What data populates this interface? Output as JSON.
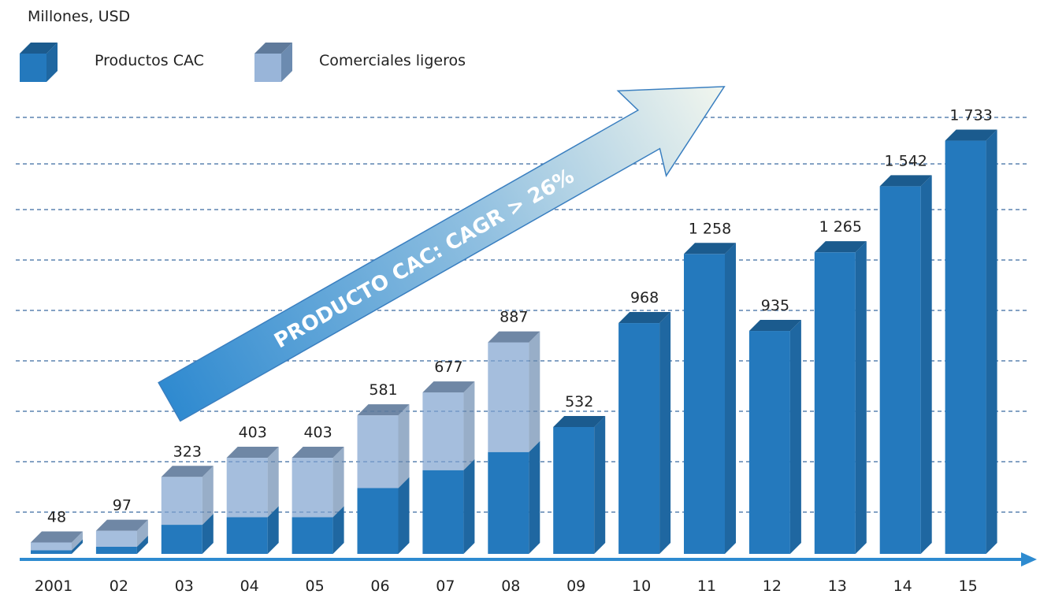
{
  "chart_data": {
    "type": "bar3d_stacked",
    "axis_label": "Millones, USD",
    "annotation": "PRODUCTO CAC: CAGR > 26%",
    "categories": [
      "2001",
      "02",
      "03",
      "04",
      "05",
      "06",
      "07",
      "08",
      "09",
      "10",
      "11",
      "12",
      "13",
      "14",
      "15"
    ],
    "series": [
      {
        "name": "Productos CAC",
        "color": "#2479bd",
        "values": [
          15,
          30,
          122,
          154,
          154,
          276,
          351,
          427,
          532,
          968,
          1258,
          935,
          1265,
          1542,
          1733
        ]
      },
      {
        "name": "Comerciales ligeros",
        "color": "#7fa3cf",
        "values": [
          33,
          67,
          201,
          249,
          249,
          305,
          326,
          460,
          null,
          null,
          null,
          null,
          null,
          null,
          null
        ]
      }
    ],
    "totals": {
      "values": [
        48,
        97,
        323,
        403,
        403,
        581,
        677,
        887,
        532,
        968,
        1258,
        935,
        1265,
        1542,
        1733
      ],
      "value_labels": [
        "48",
        "97",
        "323",
        "403",
        "403",
        "581",
        "677",
        "887",
        "532",
        "968",
        "1 258",
        "935",
        "1 265",
        "1 542",
        "1 733"
      ]
    },
    "ylim": [
      0,
      1900
    ]
  }
}
